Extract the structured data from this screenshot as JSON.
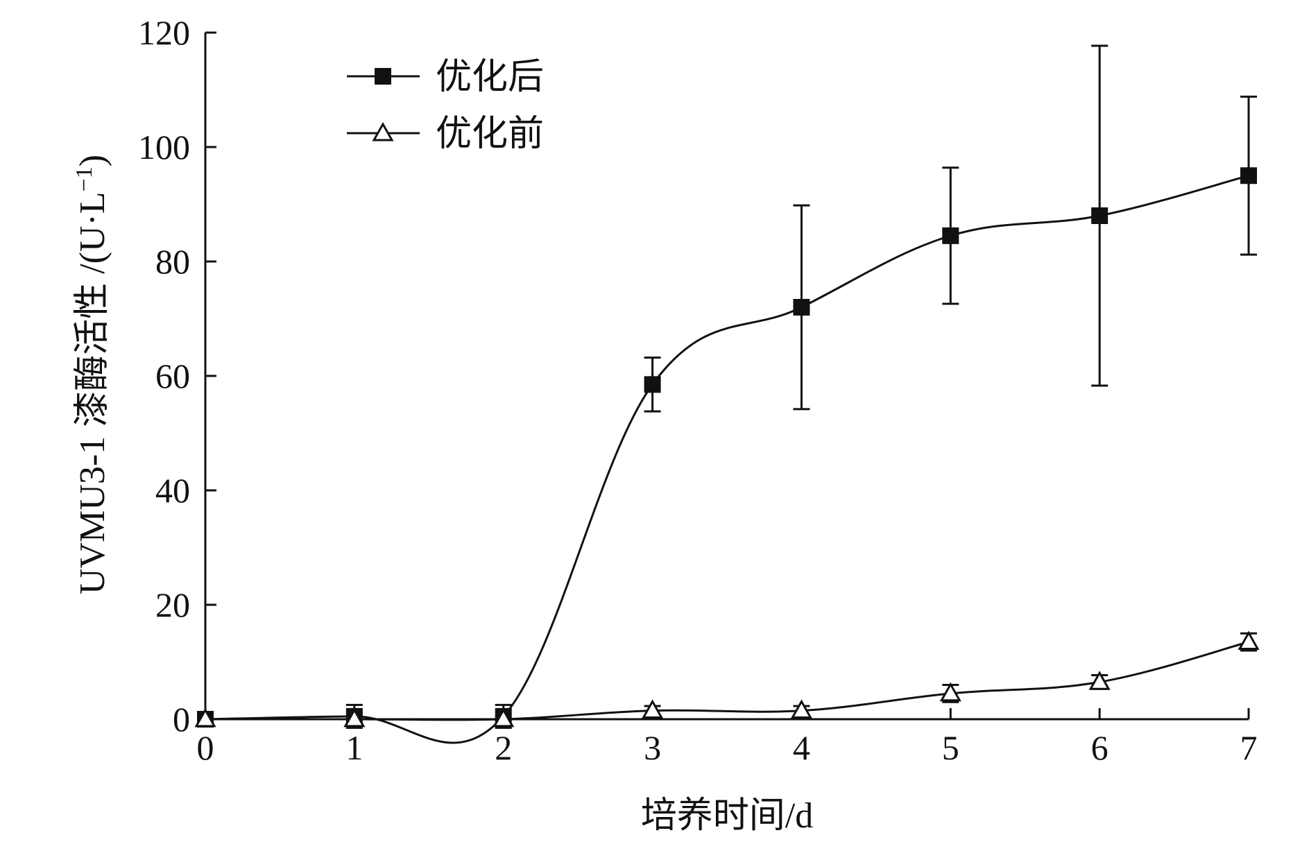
{
  "chart_data": {
    "type": "line",
    "xlabel": "培养时间/d",
    "ylabel": "UVMU3-1 漆酶活性 /(U·L⁻¹)",
    "ylabel_main": "UVMU3-1 漆酶活性 /(U·L",
    "ylabel_sup": "−1",
    "ylabel_end": ")",
    "x": [
      0,
      1,
      2,
      3,
      4,
      5,
      6,
      7
    ],
    "x_tick_labels": [
      "0",
      "1",
      "2",
      "3",
      "4",
      "5",
      "6",
      "7"
    ],
    "y_tick_labels": [
      "0",
      "20",
      "40",
      "60",
      "80",
      "100",
      "120"
    ],
    "xlim": [
      0,
      7
    ],
    "ylim": [
      0,
      120
    ],
    "grid": false,
    "legend_position": "top-left",
    "series": [
      {
        "name": "优化后",
        "marker": "filled-square",
        "values": [
          0,
          0.5,
          0.5,
          58.5,
          72,
          84.5,
          88,
          95
        ],
        "error": [
          0,
          2,
          2,
          4.7,
          17.8,
          11.9,
          29.7,
          13.8
        ]
      },
      {
        "name": "优化前",
        "marker": "open-triangle",
        "values": [
          0,
          0,
          0,
          1.5,
          1.5,
          4.5,
          6.5,
          13.5
        ],
        "error": [
          0,
          0,
          0,
          0.8,
          0.8,
          1.5,
          1.2,
          1.5
        ]
      }
    ]
  }
}
